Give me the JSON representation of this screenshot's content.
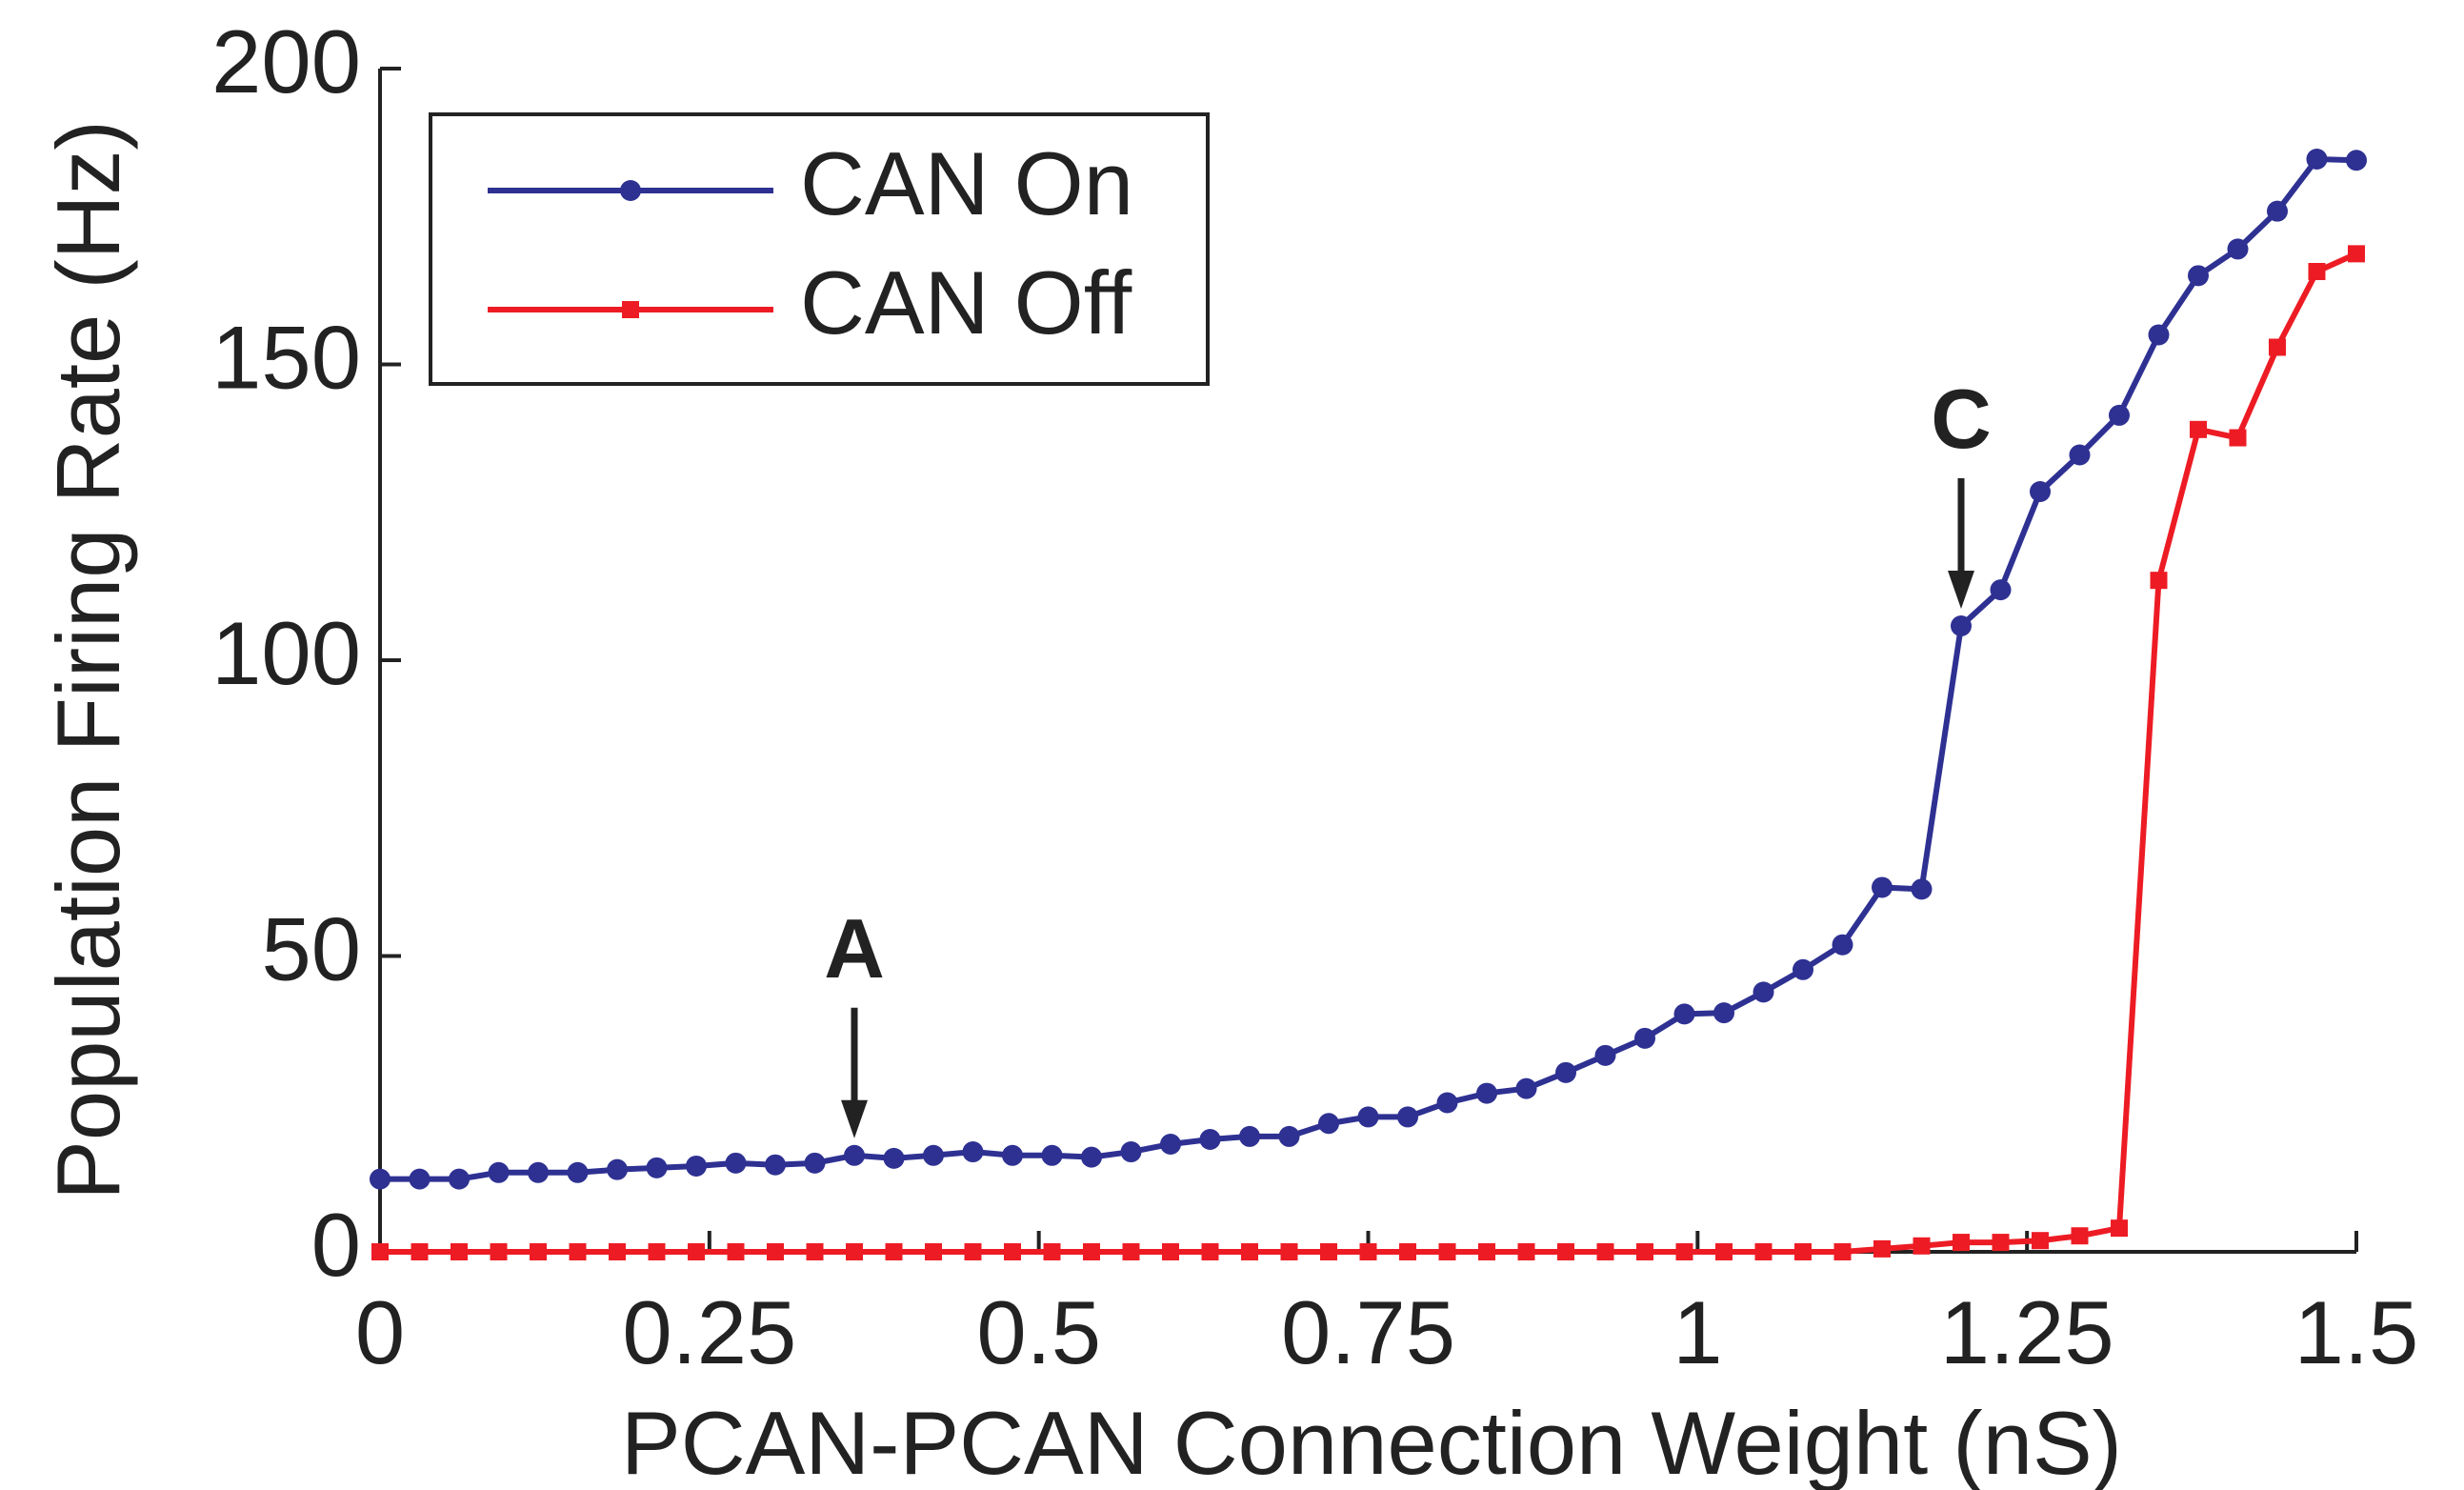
{
  "chart_data": {
    "type": "line",
    "xlabel": "PCAN-PCAN Connection Weight (nS)",
    "ylabel": "Population Firing Rate (Hz)",
    "x": [
      0,
      0.03,
      0.06,
      0.09,
      0.12,
      0.15,
      0.18,
      0.21,
      0.24,
      0.27,
      0.3,
      0.33,
      0.36,
      0.39,
      0.42,
      0.45,
      0.48,
      0.51,
      0.54,
      0.57,
      0.6,
      0.63,
      0.66,
      0.69,
      0.72,
      0.75,
      0.78,
      0.81,
      0.84,
      0.87,
      0.9,
      0.93,
      0.96,
      0.99,
      1.02,
      1.05,
      1.08,
      1.11,
      1.14,
      1.17,
      1.2,
      1.23,
      1.26,
      1.29,
      1.32,
      1.35,
      1.38,
      1.41,
      1.44,
      1.47,
      1.5
    ],
    "series": [
      {
        "name": "CAN On",
        "color": "#2e3192",
        "marker": "circle",
        "values": [
          12.3,
          12.3,
          12.3,
          13.4,
          13.4,
          13.4,
          13.9,
          14.2,
          14.5,
          15,
          14.7,
          15,
          16.3,
          15.8,
          16.3,
          16.9,
          16.3,
          16.3,
          16,
          16.9,
          18.2,
          19,
          19.5,
          19.5,
          21.7,
          22.8,
          22.8,
          25.2,
          26.8,
          27.6,
          30.3,
          33.2,
          36.1,
          40.2,
          40.4,
          43.9,
          47.7,
          51.9,
          61.6,
          61.3,
          105.8,
          111.9,
          128.5,
          134.7,
          141.4,
          155,
          165,
          169.5,
          175.9,
          184.7,
          184.5
        ]
      },
      {
        "name": "CAN Off",
        "color": "#ed1c24",
        "marker": "square",
        "values": [
          0,
          0,
          0,
          0,
          0,
          0,
          0,
          0,
          0,
          0,
          0,
          0,
          0,
          0,
          0,
          0,
          0,
          0,
          0,
          0,
          0,
          0,
          0,
          0,
          0,
          0,
          0,
          0,
          0,
          0,
          0,
          0,
          0,
          0,
          0,
          0,
          0,
          0,
          0.5,
          1,
          1.6,
          1.6,
          1.9,
          2.7,
          4,
          113.5,
          139,
          137.6,
          152.9,
          165.7,
          168.7
        ]
      }
    ],
    "annotations": [
      {
        "text": "A",
        "x": 0.36,
        "y": 16.3
      },
      {
        "text": "C",
        "x": 1.2,
        "y": 105.8
      }
    ],
    "xlim": [
      0,
      1.5
    ],
    "xticks": [
      0,
      0.25,
      0.5,
      0.75,
      1,
      1.25,
      1.5
    ],
    "ylim": [
      0,
      200
    ],
    "yticks": [
      0,
      50,
      100,
      150,
      200
    ],
    "legend": "upper-left"
  }
}
